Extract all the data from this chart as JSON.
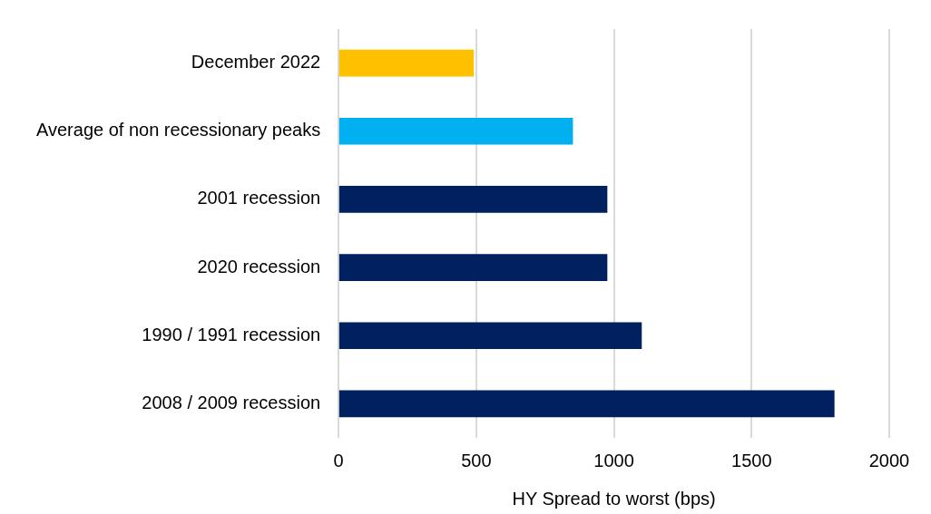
{
  "chart_data": {
    "type": "bar",
    "orientation": "horizontal",
    "xlabel": "HY Spread to worst (bps)",
    "categories": [
      "December 2022",
      "Average of non recessionary peaks",
      "2001 recession",
      "2020 recession",
      "1990 / 1991 recession",
      "2008 / 2009 recession"
    ],
    "values": [
      490,
      850,
      975,
      975,
      1100,
      1800
    ],
    "colors": [
      "#ffc000",
      "#00b0f0",
      "#002060",
      "#002060",
      "#002060",
      "#002060"
    ],
    "xlim": [
      0,
      2000
    ],
    "xticks": [
      0,
      500,
      1000,
      1500,
      2000
    ],
    "grid": "x",
    "legend": false
  }
}
